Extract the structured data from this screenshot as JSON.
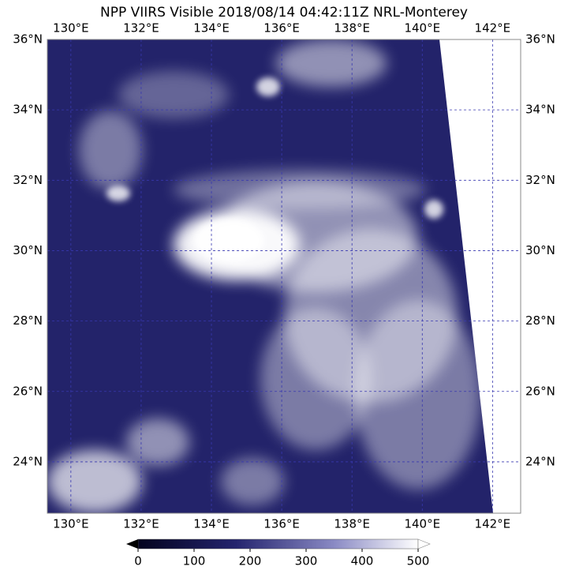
{
  "map": {
    "title": "NPP VIIRS Visible 2018/08/14 04:42:11Z NRL-Monterey",
    "lon_range": [
      129.33,
      142.8
    ],
    "lat_range": [
      22.54,
      36
    ],
    "lon_ticks": [
      {
        "value": 130,
        "label": "130°E"
      },
      {
        "value": 132,
        "label": "132°E"
      },
      {
        "value": 134,
        "label": "134°E"
      },
      {
        "value": 136,
        "label": "136°E"
      },
      {
        "value": 138,
        "label": "138°E"
      },
      {
        "value": 140,
        "label": "140°E"
      },
      {
        "value": 142,
        "label": "142°E"
      }
    ],
    "lat_ticks": [
      {
        "value": 36,
        "label": "36°N"
      },
      {
        "value": 34,
        "label": "34°N"
      },
      {
        "value": 32,
        "label": "32°N"
      },
      {
        "value": 30,
        "label": "30°N"
      },
      {
        "value": 28,
        "label": "28°N"
      },
      {
        "value": 26,
        "label": "26°N"
      },
      {
        "value": 24,
        "label": "24°N"
      }
    ],
    "colorbar": {
      "range": [
        0,
        500
      ],
      "ticks": [
        0,
        100,
        200,
        300,
        400,
        500
      ]
    }
  }
}
